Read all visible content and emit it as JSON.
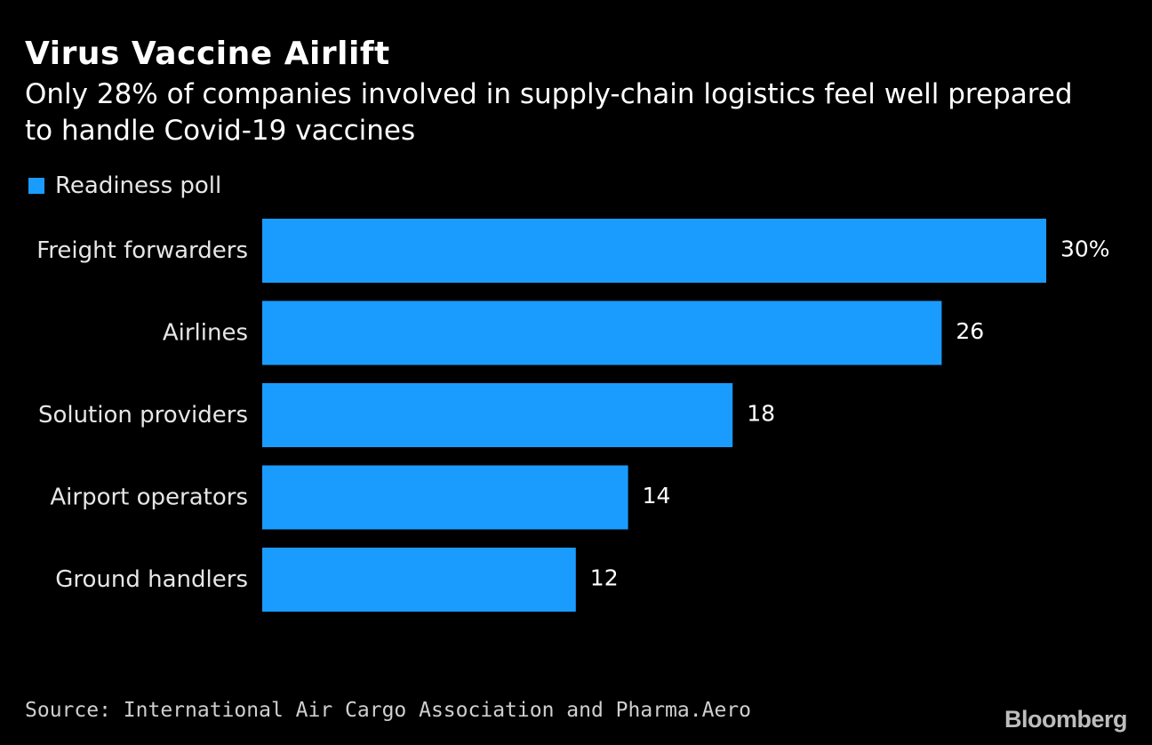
{
  "header": {
    "title": "Virus Vaccine Airlift",
    "subtitle": "Only 28% of companies involved in supply-chain logistics feel well prepared to handle Covid-19 vaccines"
  },
  "legend": {
    "label": "Readiness poll",
    "color": "#1a9cff"
  },
  "footer": {
    "source": "Source: International Air Cargo Association and Pharma.Aero",
    "brand": "Bloomberg"
  },
  "chart_data": {
    "type": "bar",
    "orientation": "horizontal",
    "title": "Virus Vaccine Airlift",
    "subtitle": "Only 28% of companies involved in supply-chain logistics feel well prepared to handle Covid-19 vaccines",
    "categories": [
      "Freight forwarders",
      "Airlines",
      "Solution providers",
      "Airport operators",
      "Ground handlers"
    ],
    "series": [
      {
        "name": "Readiness poll",
        "values": [
          30,
          26,
          18,
          14,
          12
        ],
        "color": "#1a9cff"
      }
    ],
    "value_labels": [
      "30%",
      "26",
      "18",
      "14",
      "12"
    ],
    "xlim": [
      0,
      30
    ],
    "grid": false,
    "legend_position": "top-left",
    "xlabel": "",
    "ylabel": ""
  }
}
